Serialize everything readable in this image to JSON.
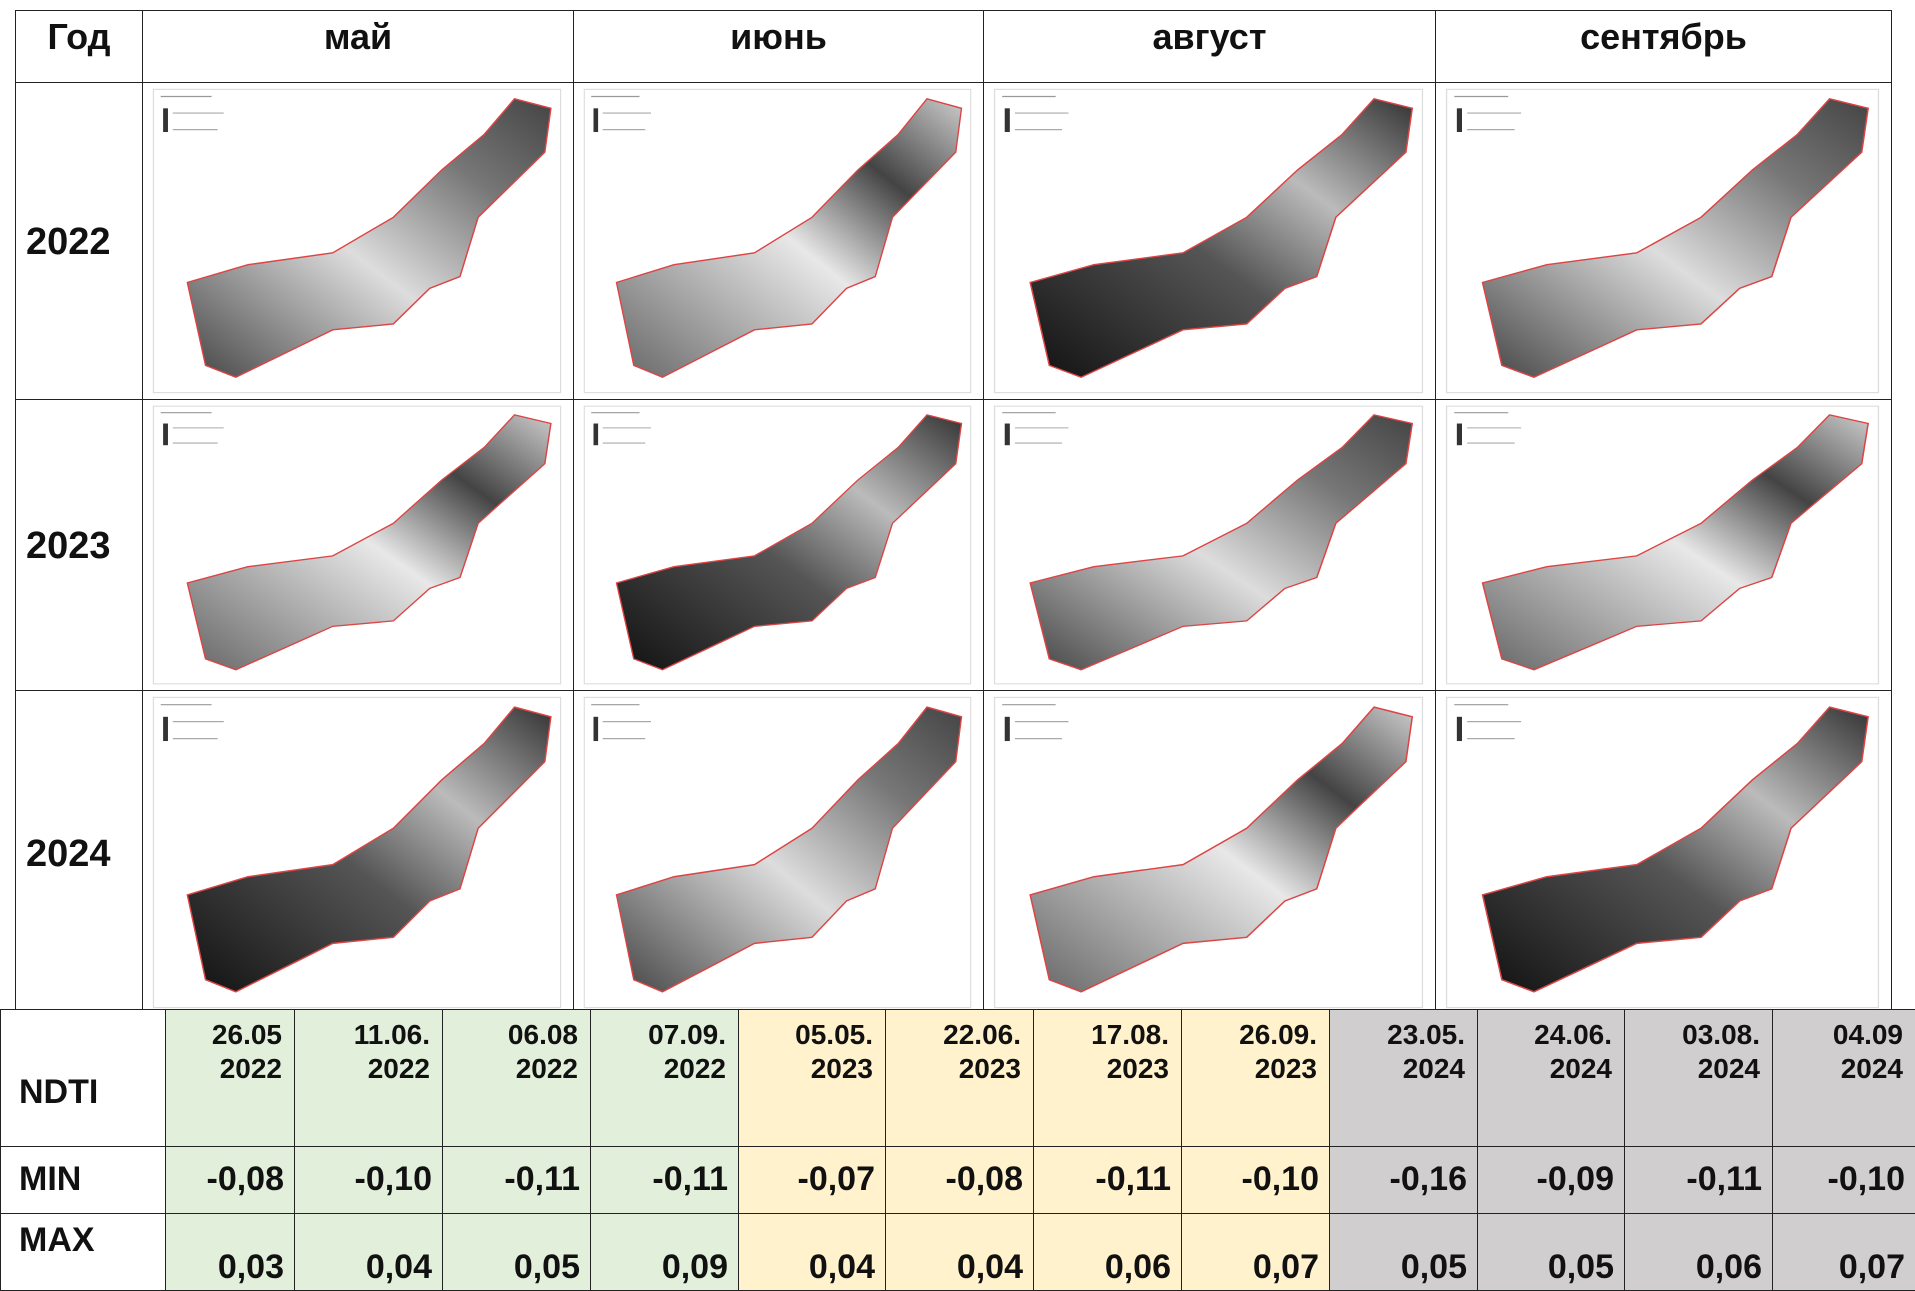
{
  "header": {
    "columns": [
      "Год",
      "май",
      "июнь",
      "август",
      "сентябрь"
    ]
  },
  "rows": [
    {
      "year": "2022"
    },
    {
      "year": "2023"
    },
    {
      "year": "2024"
    }
  ],
  "ndti": {
    "label": "NDTI",
    "dates": [
      "26.05\n2022",
      "11.06.\n2022",
      "06.08\n2022",
      "07.09.\n2022",
      "05.05.\n2023",
      "22.06.\n2023",
      "17.08.\n2023",
      "26.09.\n2023",
      "23.05.\n2024",
      "24.06.\n2024",
      "03.08.\n2024",
      "04.09\n2024"
    ],
    "min_label": "MIN",
    "min": [
      "-0,08",
      "-0,10",
      "-0,11",
      "-0,11",
      "-0,07",
      "-0,08",
      "-0,11",
      "-0,10",
      "-0,16",
      "-0,09",
      "-0,11",
      "-0,10"
    ],
    "max_label": "MAX",
    "max": [
      "0,03",
      "0,04",
      "0,05",
      "0,09",
      "0,04",
      "0,04",
      "0,06",
      "0,07",
      "0,05",
      "0,05",
      "0,06",
      "0,07"
    ]
  }
}
